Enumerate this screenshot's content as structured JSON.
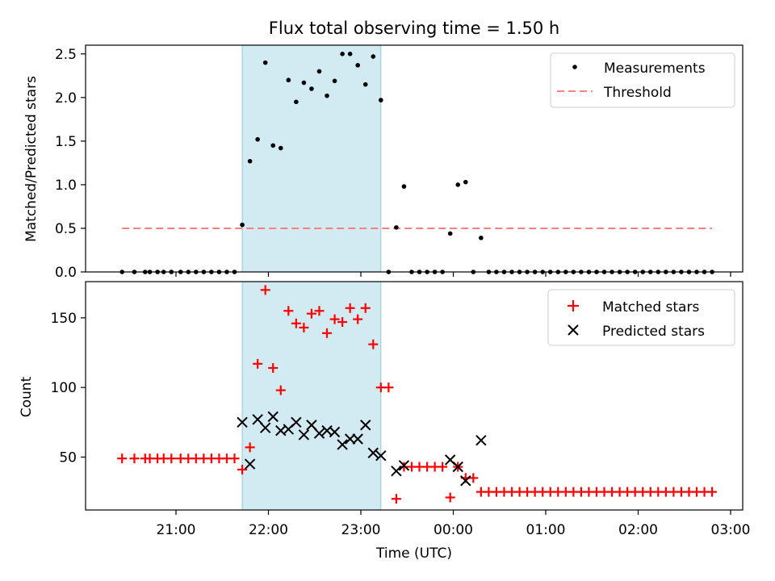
{
  "chart_data": {
    "title": "Flux total observing time = 1.50 h",
    "type": "scatter",
    "x_tick_labels": [
      "21:00",
      "22:00",
      "23:00",
      "00:00",
      "01:00",
      "02:00",
      "03:00"
    ],
    "xlabel": "Time (UTC)",
    "shaded_span": {
      "start": "21:43",
      "end": "23:13",
      "color": "#add8e6"
    },
    "panels": [
      {
        "ylabel": "Matched/Predicted stars",
        "ylim": [
          0,
          2.6
        ],
        "y_ticks": [
          0.0,
          0.5,
          1.0,
          1.5,
          2.0,
          2.5
        ],
        "y_tick_labels": [
          "0.0",
          "0.5",
          "1.0",
          "1.5",
          "2.0",
          "2.5"
        ],
        "legend": {
          "placement": "top-right",
          "entries": [
            "Measurements",
            "Threshold"
          ]
        },
        "threshold": {
          "name": "Threshold",
          "value": 0.5,
          "x_start": "20:25",
          "x_end": "02:48",
          "color": "#ff7f7f"
        },
        "measurements": [
          [
            "20:25",
            0
          ],
          [
            "20:33",
            0
          ],
          [
            "20:40",
            0
          ],
          [
            "20:43",
            0
          ],
          [
            "20:48",
            0
          ],
          [
            "20:52",
            0
          ],
          [
            "20:57",
            0
          ],
          [
            "21:03",
            0
          ],
          [
            "21:08",
            0
          ],
          [
            "21:13",
            0
          ],
          [
            "21:18",
            0
          ],
          [
            "21:23",
            0
          ],
          [
            "21:28",
            0
          ],
          [
            "21:33",
            0
          ],
          [
            "21:38",
            0
          ],
          [
            "21:43",
            0.54
          ],
          [
            "21:48",
            1.27
          ],
          [
            "21:53",
            1.52
          ],
          [
            "21:58",
            2.4
          ],
          [
            "22:03",
            1.45
          ],
          [
            "22:08",
            1.42
          ],
          [
            "22:13",
            2.2
          ],
          [
            "22:18",
            1.95
          ],
          [
            "22:23",
            2.17
          ],
          [
            "22:28",
            2.1
          ],
          [
            "22:33",
            2.3
          ],
          [
            "22:38",
            2.02
          ],
          [
            "22:43",
            2.19
          ],
          [
            "22:48",
            2.5
          ],
          [
            "22:53",
            2.5
          ],
          [
            "22:58",
            2.37
          ],
          [
            "23:03",
            2.15
          ],
          [
            "23:08",
            2.47
          ],
          [
            "23:13",
            1.97
          ],
          [
            "23:18",
            0
          ],
          [
            "23:23",
            0.51
          ],
          [
            "23:28",
            0.98
          ],
          [
            "23:33",
            0
          ],
          [
            "23:38",
            0
          ],
          [
            "23:43",
            0
          ],
          [
            "23:48",
            0
          ],
          [
            "23:53",
            0
          ],
          [
            "23:58",
            0.44
          ],
          [
            "00:03",
            1.0
          ],
          [
            "00:08",
            1.03
          ],
          [
            "00:13",
            0
          ],
          [
            "00:18",
            0.39
          ],
          [
            "00:23",
            0
          ],
          [
            "00:28",
            0
          ],
          [
            "00:33",
            0
          ],
          [
            "00:38",
            0
          ],
          [
            "00:43",
            0
          ],
          [
            "00:48",
            0
          ],
          [
            "00:53",
            0
          ],
          [
            "00:58",
            0
          ],
          [
            "01:03",
            0
          ],
          [
            "01:08",
            0
          ],
          [
            "01:13",
            0
          ],
          [
            "01:18",
            0
          ],
          [
            "01:23",
            0
          ],
          [
            "01:28",
            0
          ],
          [
            "01:33",
            0
          ],
          [
            "01:38",
            0
          ],
          [
            "01:43",
            0
          ],
          [
            "01:48",
            0
          ],
          [
            "01:53",
            0
          ],
          [
            "01:58",
            0
          ],
          [
            "02:03",
            0
          ],
          [
            "02:08",
            0
          ],
          [
            "02:13",
            0
          ],
          [
            "02:18",
            0
          ],
          [
            "02:23",
            0
          ],
          [
            "02:28",
            0
          ],
          [
            "02:33",
            0
          ],
          [
            "02:38",
            0
          ],
          [
            "02:43",
            0
          ],
          [
            "02:48",
            0
          ]
        ]
      },
      {
        "ylabel": "Count",
        "ylim": [
          12,
          176
        ],
        "y_ticks": [
          50,
          100,
          150
        ],
        "y_tick_labels": [
          "50",
          "100",
          "150"
        ],
        "legend": {
          "placement": "top-right",
          "entries": [
            "Matched stars",
            "Predicted stars"
          ]
        },
        "series": [
          {
            "name": "Matched stars",
            "marker": "+",
            "color": "#ff0000",
            "points": [
              [
                "20:25",
                49
              ],
              [
                "20:33",
                49
              ],
              [
                "20:40",
                49
              ],
              [
                "20:43",
                49
              ],
              [
                "20:48",
                49
              ],
              [
                "20:52",
                49
              ],
              [
                "20:57",
                49
              ],
              [
                "21:03",
                49
              ],
              [
                "21:08",
                49
              ],
              [
                "21:13",
                49
              ],
              [
                "21:18",
                49
              ],
              [
                "21:23",
                49
              ],
              [
                "21:28",
                49
              ],
              [
                "21:33",
                49
              ],
              [
                "21:38",
                49
              ],
              [
                "21:43",
                41
              ],
              [
                "21:48",
                57
              ],
              [
                "21:53",
                117
              ],
              [
                "21:58",
                170
              ],
              [
                "22:03",
                114
              ],
              [
                "22:08",
                98
              ],
              [
                "22:13",
                155
              ],
              [
                "22:18",
                146
              ],
              [
                "22:23",
                143
              ],
              [
                "22:28",
                153
              ],
              [
                "22:33",
                155
              ],
              [
                "22:38",
                139
              ],
              [
                "22:43",
                149
              ],
              [
                "22:48",
                147
              ],
              [
                "22:53",
                157
              ],
              [
                "22:58",
                149
              ],
              [
                "23:03",
                157
              ],
              [
                "23:08",
                131
              ],
              [
                "23:13",
                100
              ],
              [
                "23:18",
                100
              ],
              [
                "23:23",
                20
              ],
              [
                "23:28",
                43
              ],
              [
                "23:33",
                43
              ],
              [
                "23:38",
                43
              ],
              [
                "23:43",
                43
              ],
              [
                "23:48",
                43
              ],
              [
                "23:53",
                43
              ],
              [
                "23:58",
                21
              ],
              [
                "00:03",
                43
              ],
              [
                "00:08",
                35
              ],
              [
                "00:13",
                35
              ],
              [
                "00:18",
                25
              ],
              [
                "00:23",
                25
              ],
              [
                "00:28",
                25
              ],
              [
                "00:33",
                25
              ],
              [
                "00:38",
                25
              ],
              [
                "00:43",
                25
              ],
              [
                "00:48",
                25
              ],
              [
                "00:53",
                25
              ],
              [
                "00:58",
                25
              ],
              [
                "01:03",
                25
              ],
              [
                "01:08",
                25
              ],
              [
                "01:13",
                25
              ],
              [
                "01:18",
                25
              ],
              [
                "01:23",
                25
              ],
              [
                "01:28",
                25
              ],
              [
                "01:33",
                25
              ],
              [
                "01:38",
                25
              ],
              [
                "01:43",
                25
              ],
              [
                "01:48",
                25
              ],
              [
                "01:53",
                25
              ],
              [
                "01:58",
                25
              ],
              [
                "02:03",
                25
              ],
              [
                "02:08",
                25
              ],
              [
                "02:13",
                25
              ],
              [
                "02:18",
                25
              ],
              [
                "02:23",
                25
              ],
              [
                "02:28",
                25
              ],
              [
                "02:33",
                25
              ],
              [
                "02:38",
                25
              ],
              [
                "02:43",
                25
              ],
              [
                "02:48",
                25
              ]
            ]
          },
          {
            "name": "Predicted stars",
            "marker": "x",
            "color": "#000000",
            "points": [
              [
                "21:43",
                75
              ],
              [
                "21:48",
                45
              ],
              [
                "21:53",
                77
              ],
              [
                "21:58",
                71
              ],
              [
                "22:03",
                79
              ],
              [
                "22:08",
                69
              ],
              [
                "22:13",
                70
              ],
              [
                "22:18",
                75
              ],
              [
                "22:23",
                66
              ],
              [
                "22:28",
                73
              ],
              [
                "22:33",
                67
              ],
              [
                "22:38",
                69
              ],
              [
                "22:43",
                68
              ],
              [
                "22:48",
                59
              ],
              [
                "22:53",
                63
              ],
              [
                "22:58",
                63
              ],
              [
                "23:03",
                73
              ],
              [
                "23:08",
                53
              ],
              [
                "23:13",
                51
              ],
              [
                "23:23",
                40
              ],
              [
                "23:28",
                44
              ],
              [
                "23:58",
                48
              ],
              [
                "00:03",
                43
              ],
              [
                "00:08",
                33
              ],
              [
                "00:18",
                62
              ]
            ]
          }
        ]
      }
    ]
  }
}
